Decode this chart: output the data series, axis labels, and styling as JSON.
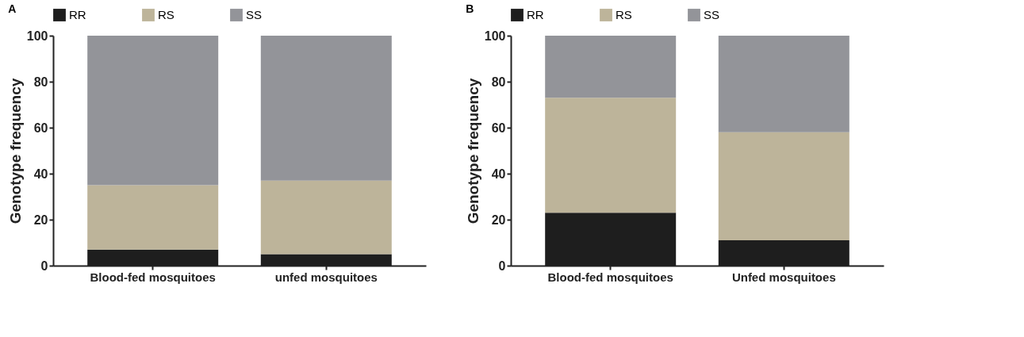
{
  "chart_data": [
    {
      "type": "bar",
      "title": "A",
      "stacked": true,
      "ylabel": "Genotype frequency",
      "categories": [
        "Blood-fed mosquitoes",
        "unfed mosquitoes"
      ],
      "ylim": [
        0,
        100
      ],
      "yticks": [
        0,
        20,
        40,
        60,
        80,
        100
      ],
      "grid": false,
      "legend": "top",
      "series": [
        {
          "name": "RR",
          "color": "#1e1e1e",
          "values": [
            7,
            5
          ]
        },
        {
          "name": "RS",
          "color": "#bdb49a",
          "values": [
            28,
            32
          ]
        },
        {
          "name": "SS",
          "color": "#939499",
          "values": [
            65,
            63
          ]
        }
      ]
    },
    {
      "type": "bar",
      "title": "B",
      "stacked": true,
      "ylabel": "Genotype frequency",
      "categories": [
        "Blood-fed mosquitoes",
        "Unfed mosquitoes"
      ],
      "ylim": [
        0,
        100
      ],
      "yticks": [
        0,
        20,
        40,
        60,
        80,
        100
      ],
      "grid": false,
      "legend": "top",
      "series": [
        {
          "name": "RR",
          "color": "#1e1e1e",
          "values": [
            23,
            11
          ]
        },
        {
          "name": "RS",
          "color": "#bdb49a",
          "values": [
            50,
            47
          ]
        },
        {
          "name": "SS",
          "color": "#939499",
          "values": [
            27,
            42
          ]
        }
      ]
    }
  ]
}
